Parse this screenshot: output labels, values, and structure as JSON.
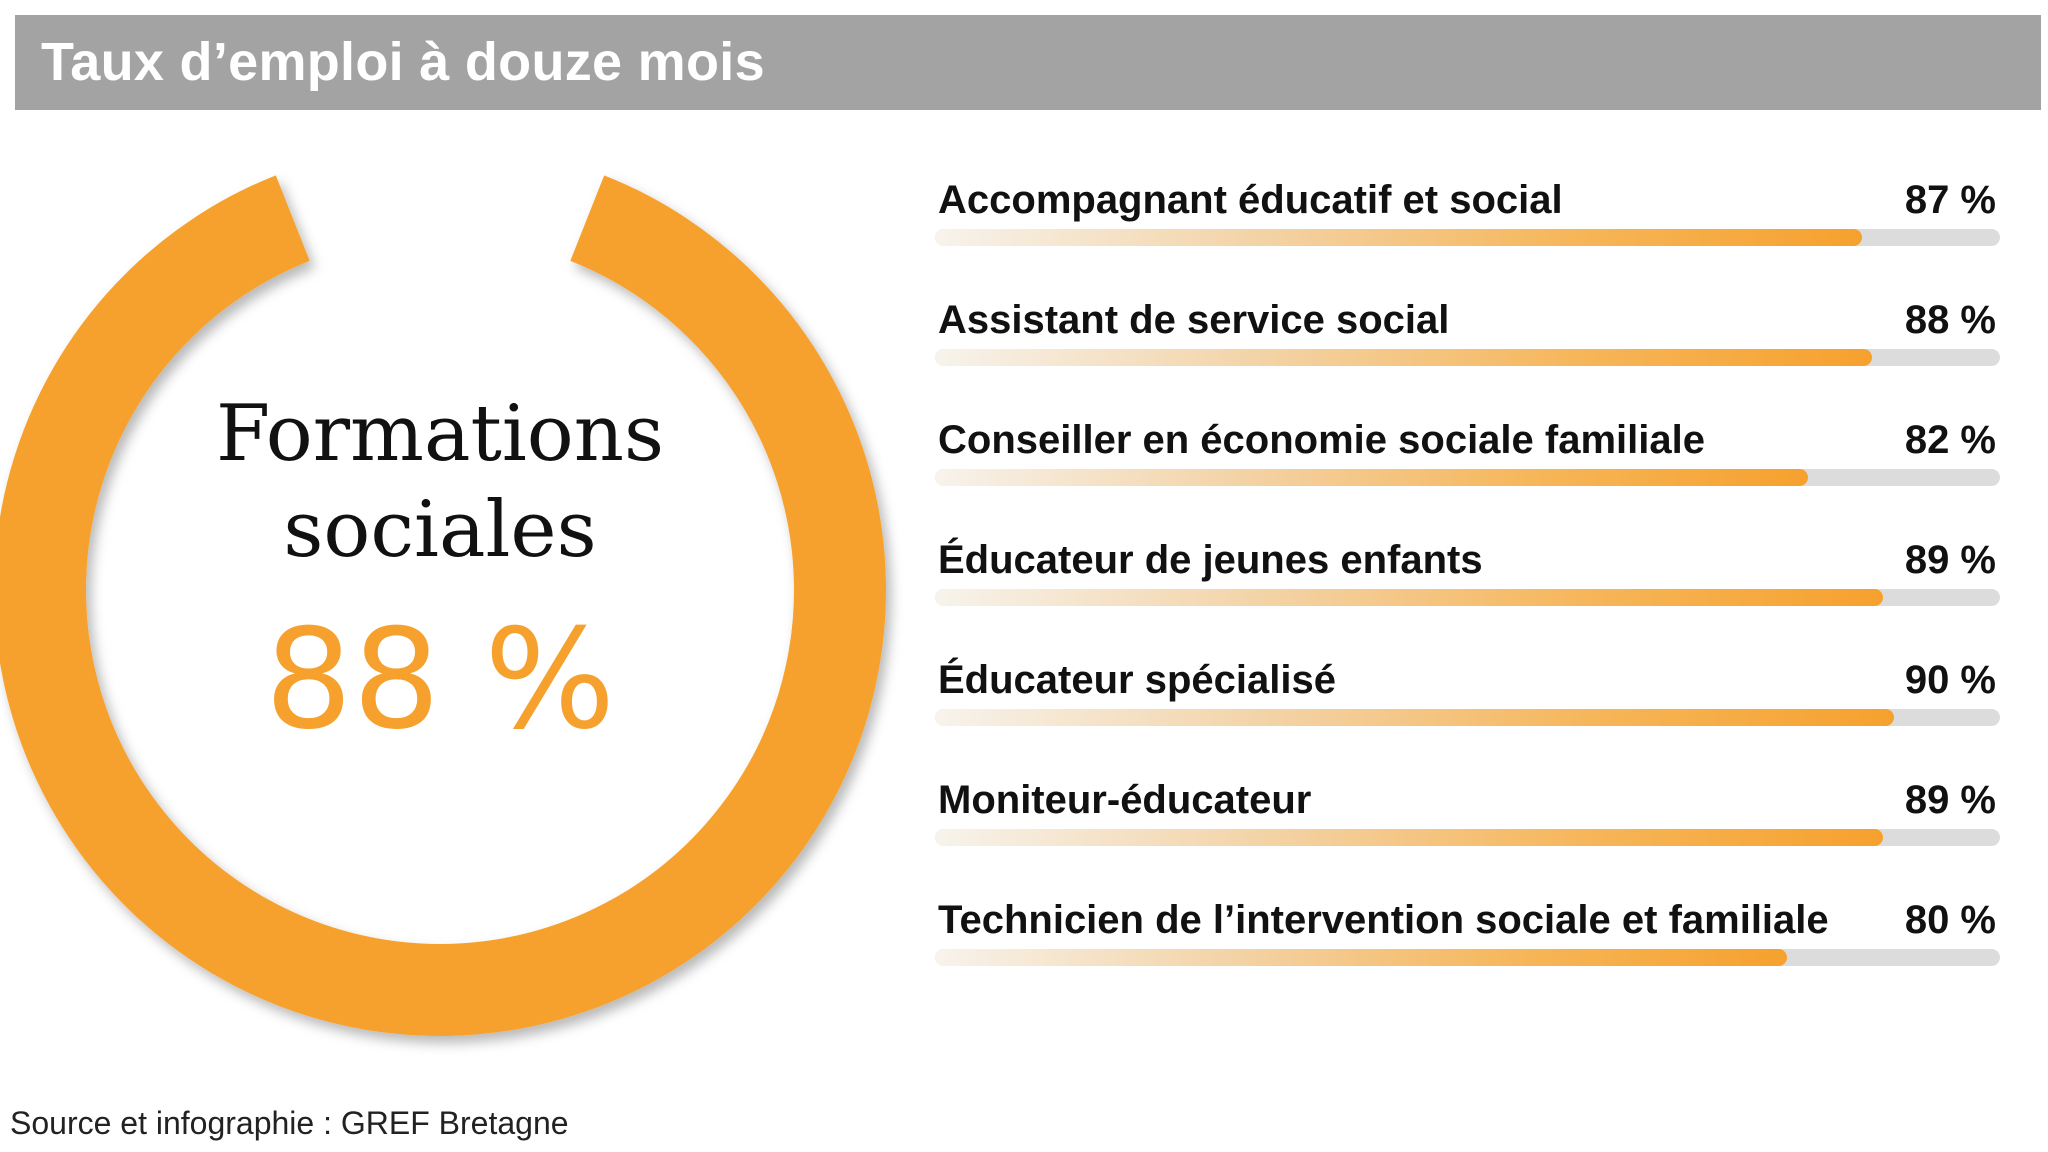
{
  "header": {
    "title": "Taux d’emploi à douze mois"
  },
  "colors": {
    "accent": "#f6a12e",
    "header_bg": "#a3a3a3",
    "track": "#dcdcdc"
  },
  "donut": {
    "label_line1": "Formations",
    "label_line2": "sociales",
    "value_text": "88 %",
    "value": 88
  },
  "chart_data": {
    "type": "bar",
    "orientation": "horizontal",
    "title": "Taux d’emploi à douze mois",
    "xlim": [
      0,
      100
    ],
    "categories": [
      "Accompagnant éducatif et social",
      "Assistant de service social",
      "Conseiller en économie sociale familiale",
      "Éducateur de jeunes enfants",
      "Éducateur spécialisé",
      "Moniteur-éducateur",
      "Technicien de l’intervention sociale et familiale"
    ],
    "values": [
      87,
      88,
      82,
      89,
      90,
      89,
      80
    ],
    "value_labels": [
      "87 %",
      "88 %",
      "82 %",
      "89 %",
      "90 %",
      "89 %",
      "80 %"
    ]
  },
  "footer": {
    "source": "Source et infographie : GREF Bretagne"
  }
}
